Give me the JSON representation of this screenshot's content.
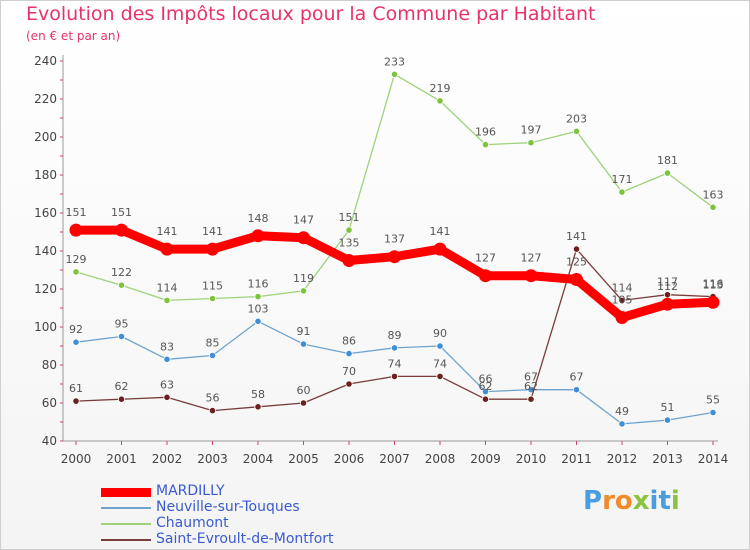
{
  "title": "Evolution des Impôts locaux pour la Commune par Habitant",
  "subtitle": "(en € et par an)",
  "brand": {
    "letters": [
      "P",
      "r",
      "o",
      "x",
      "i",
      "t",
      "i"
    ],
    "colors": [
      "#4a9ee0",
      "#f08a2a",
      "#f08a2a",
      "#8ac43f",
      "#4a9ee0",
      "#4a9ee0",
      "#8ac43f"
    ]
  },
  "chart_data": {
    "type": "line",
    "title": "Evolution des Impôts locaux pour la Commune par Habitant",
    "subtitle": "(en € et par an)",
    "x": [
      "2000",
      "2001",
      "2002",
      "2003",
      "2004",
      "2005",
      "2006",
      "2007",
      "2008",
      "2009",
      "2010",
      "2011",
      "2012",
      "2013",
      "2014"
    ],
    "ylim": [
      40,
      240
    ],
    "yticks": [
      "40",
      "60",
      "80",
      "100",
      "120",
      "140",
      "160",
      "180",
      "200",
      "220",
      "240"
    ],
    "grid": false,
    "legend_position": "bottom-left",
    "series": [
      {
        "name": "MARDILLY",
        "color": "#ff0000",
        "marker_color": "#ff0000",
        "emphasis": true,
        "values": [
          151,
          151,
          141,
          141,
          148,
          147,
          135,
          137,
          141,
          127,
          127,
          125,
          105,
          112,
          113
        ],
        "labels": [
          "151",
          "151",
          "141",
          "141",
          "148",
          "147",
          "135",
          "137",
          "141",
          "127",
          "127",
          "125",
          "105",
          "112",
          "113"
        ]
      },
      {
        "name": "Neuville-sur-Touques",
        "color": "#6fa3cf",
        "marker_color": "#3f8fd6",
        "values": [
          92,
          95,
          83,
          85,
          103,
          91,
          86,
          89,
          90,
          66,
          67,
          67,
          49,
          51,
          55
        ],
        "labels": [
          "92",
          "95",
          "83",
          "85",
          "103",
          "91",
          "86",
          "89",
          "90",
          "66",
          "67",
          "67",
          "49",
          "51",
          "55"
        ]
      },
      {
        "name": "Chaumont",
        "color": "#9ed27a",
        "marker_color": "#7dc33c",
        "values": [
          129,
          122,
          114,
          115,
          116,
          119,
          151,
          233,
          219,
          196,
          197,
          203,
          171,
          181,
          163
        ],
        "labels": [
          "129",
          "122",
          "114",
          "115",
          "116",
          "119",
          "151",
          "233",
          "219",
          "196",
          "197",
          "203",
          "171",
          "181",
          "163"
        ]
      },
      {
        "name": "Saint-Evroult-de-Montfort",
        "color": "#7a3b3b",
        "marker_color": "#6b1f1f",
        "values": [
          61,
          62,
          63,
          56,
          58,
          60,
          70,
          74,
          74,
          62,
          62,
          141,
          114,
          117,
          116
        ],
        "labels": [
          "61",
          "62",
          "63",
          "56",
          "58",
          "60",
          "70",
          "74",
          "74",
          "62",
          "62",
          "141",
          "114",
          "117",
          "116"
        ]
      }
    ]
  }
}
